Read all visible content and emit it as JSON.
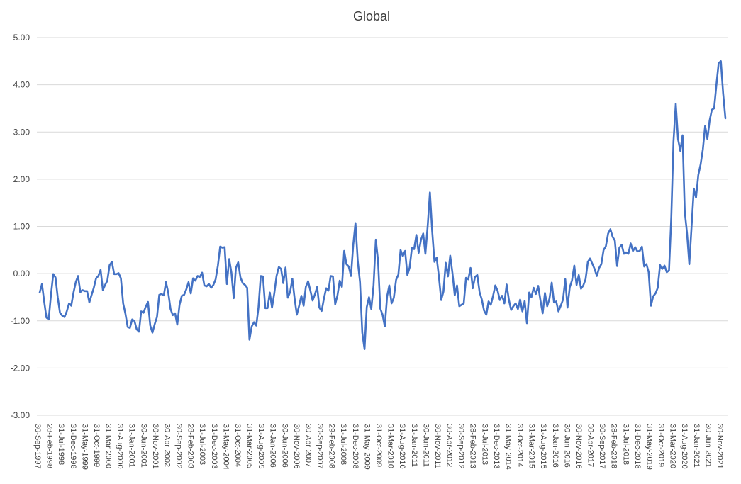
{
  "chart_data": {
    "type": "line",
    "title": "Global",
    "xlabel": "",
    "ylabel": "",
    "ylim": [
      -3,
      5
    ],
    "yticks": [
      "5.00",
      "4.00",
      "3.00",
      "2.00",
      "1.00",
      "0.00",
      "-1.00",
      "-2.00",
      "-3.00"
    ],
    "ytick_values": [
      5,
      4,
      3,
      2,
      1,
      0,
      -1,
      -2,
      -3
    ],
    "grid": "horizontal",
    "legend": "none",
    "line_color": "#4472C4",
    "x_start": "30-Sep-1997",
    "x_end": "28-Feb-2022",
    "xtick_labels": [
      "30-Sep-1997",
      "28-Feb-1998",
      "31-Jul-1998",
      "31-Dec-1998",
      "31-May-1999",
      "31-Oct-1999",
      "31-Mar-2000",
      "31-Aug-2000",
      "31-Jan-2001",
      "30-Jun-2001",
      "30-Nov-2001",
      "30-Apr-2002",
      "30-Sep-2002",
      "28-Feb-2003",
      "31-Jul-2003",
      "31-Dec-2003",
      "31-May-2004",
      "31-Oct-2004",
      "31-Mar-2005",
      "31-Aug-2005",
      "31-Jan-2006",
      "30-Jun-2006",
      "30-Nov-2006",
      "30-Apr-2007",
      "30-Sep-2007",
      "29-Feb-2008",
      "31-Jul-2008",
      "31-Dec-2008",
      "31-May-2009",
      "31-Oct-2009",
      "31-Mar-2010",
      "31-Aug-2010",
      "31-Jan-2011",
      "30-Jun-2011",
      "30-Nov-2011",
      "30-Apr-2012",
      "30-Sep-2012",
      "28-Feb-2013",
      "31-Jul-2013",
      "31-Dec-2013",
      "31-May-2014",
      "31-Oct-2014",
      "31-Mar-2015",
      "31-Aug-2015",
      "31-Jan-2016",
      "30-Jun-2016",
      "30-Nov-2016",
      "30-Apr-2017",
      "30-Sep-2017",
      "28-Feb-2018",
      "31-Jul-2018",
      "31-Dec-2018",
      "31-May-2019",
      "31-Oct-2019",
      "31-Mar-2020",
      "31-Aug-2020",
      "31-Jan-2021",
      "30-Jun-2021",
      "30-Nov-2021"
    ],
    "series": [
      {
        "values": [
          -0.4,
          -0.22,
          -0.6,
          -0.93,
          -0.97,
          -0.45,
          -0.01,
          -0.08,
          -0.5,
          -0.83,
          -0.89,
          -0.92,
          -0.8,
          -0.63,
          -0.68,
          -0.4,
          -0.18,
          -0.05,
          -0.39,
          -0.35,
          -0.37,
          -0.37,
          -0.61,
          -0.45,
          -0.3,
          -0.1,
          -0.05,
          0.08,
          -0.35,
          -0.24,
          -0.15,
          0.18,
          0.25,
          -0.01,
          -0.01,
          0.01,
          -0.1,
          -0.63,
          -0.85,
          -1.13,
          -1.15,
          -0.97,
          -1.0,
          -1.18,
          -1.23,
          -0.8,
          -0.83,
          -0.7,
          -0.6,
          -1.1,
          -1.25,
          -1.07,
          -0.92,
          -0.45,
          -0.43,
          -0.46,
          -0.18,
          -0.4,
          -0.75,
          -0.88,
          -0.84,
          -1.08,
          -0.66,
          -0.47,
          -0.45,
          -0.33,
          -0.18,
          -0.42,
          -0.1,
          -0.15,
          -0.05,
          -0.07,
          0.02,
          -0.25,
          -0.27,
          -0.22,
          -0.3,
          -0.24,
          -0.12,
          0.17,
          0.57,
          0.55,
          0.56,
          -0.22,
          0.31,
          0.02,
          -0.52,
          0.12,
          0.24,
          -0.08,
          -0.2,
          -0.24,
          -0.3,
          -1.4,
          -1.12,
          -1.03,
          -1.1,
          -0.72,
          -0.05,
          -0.06,
          -0.73,
          -0.73,
          -0.4,
          -0.72,
          -0.42,
          -0.05,
          0.14,
          0.1,
          -0.2,
          0.13,
          -0.51,
          -0.39,
          -0.11,
          -0.52,
          -0.87,
          -0.68,
          -0.47,
          -0.68,
          -0.28,
          -0.16,
          -0.36,
          -0.57,
          -0.44,
          -0.28,
          -0.72,
          -0.79,
          -0.53,
          -0.31,
          -0.36,
          -0.05,
          -0.06,
          -0.65,
          -0.46,
          -0.15,
          -0.28,
          0.48,
          0.2,
          0.15,
          -0.05,
          0.6,
          1.07,
          0.27,
          -0.18,
          -1.25,
          -1.6,
          -0.71,
          -0.5,
          -0.75,
          -0.25,
          0.72,
          0.28,
          -0.74,
          -0.87,
          -1.12,
          -0.48,
          -0.25,
          -0.63,
          -0.51,
          -0.13,
          -0.02,
          0.5,
          0.37,
          0.48,
          -0.03,
          0.13,
          0.55,
          0.52,
          0.82,
          0.44,
          0.71,
          0.85,
          0.42,
          1.0,
          1.72,
          0.9,
          0.25,
          0.34,
          -0.07,
          -0.56,
          -0.38,
          0.23,
          -0.06,
          0.38,
          0.01,
          -0.46,
          -0.25,
          -0.69,
          -0.66,
          -0.63,
          -0.09,
          -0.12,
          0.12,
          -0.31,
          -0.07,
          -0.03,
          -0.39,
          -0.55,
          -0.78,
          -0.87,
          -0.59,
          -0.66,
          -0.47,
          -0.25,
          -0.36,
          -0.56,
          -0.47,
          -0.63,
          -0.23,
          -0.55,
          -0.77,
          -0.69,
          -0.63,
          -0.75,
          -0.55,
          -0.8,
          -0.58,
          -1.05,
          -0.4,
          -0.5,
          -0.3,
          -0.43,
          -0.26,
          -0.57,
          -0.84,
          -0.41,
          -0.69,
          -0.53,
          -0.19,
          -0.61,
          -0.59,
          -0.8,
          -0.68,
          -0.55,
          -0.12,
          -0.72,
          -0.29,
          -0.14,
          0.17,
          -0.24,
          -0.03,
          -0.32,
          -0.25,
          -0.12,
          0.25,
          0.32,
          0.21,
          0.1,
          -0.05,
          0.12,
          0.2,
          0.5,
          0.58,
          0.85,
          0.94,
          0.78,
          0.7,
          0.16,
          0.55,
          0.61,
          0.42,
          0.45,
          0.42,
          0.64,
          0.48,
          0.56,
          0.47,
          0.48,
          0.57,
          0.15,
          0.2,
          0.03,
          -0.68,
          -0.48,
          -0.42,
          -0.3,
          0.18,
          0.1,
          0.17,
          0.03,
          0.07,
          1.2,
          2.8,
          3.6,
          2.85,
          2.6,
          2.93,
          1.31,
          0.85,
          0.2,
          1.0,
          1.8,
          1.61,
          2.09,
          2.31,
          2.63,
          3.13,
          2.85,
          3.24,
          3.47,
          3.5,
          4.0,
          4.46,
          4.5,
          3.82,
          3.29
        ]
      }
    ]
  }
}
